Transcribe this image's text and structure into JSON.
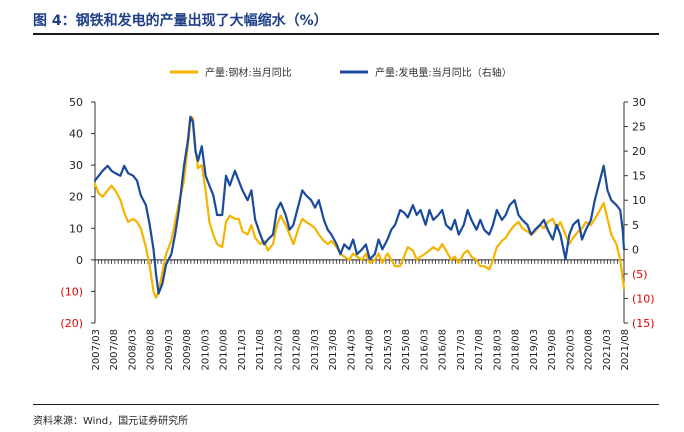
{
  "figure": {
    "title": "图 4：钢铁和发电的产量出现了大幅缩水（%）",
    "source": "资料来源：Wind，国元证券研究所"
  },
  "chart_data": {
    "type": "line",
    "title": "图 4：钢铁和发电的产量出现了大幅缩水（%）",
    "x_tick_labels": [
      "2007/03",
      "2007/08",
      "2008/03",
      "2008/08",
      "2009/03",
      "2009/08",
      "2010/03",
      "2010/08",
      "2011/03",
      "2011/08",
      "2012/03",
      "2012/08",
      "2013/03",
      "2013/08",
      "2014/03",
      "2014/08",
      "2015/03",
      "2015/08",
      "2016/03",
      "2016/08",
      "2017/03",
      "2017/08",
      "2018/03",
      "2018/08",
      "2019/03",
      "2019/08",
      "2020/03",
      "2020/08",
      "2021/03",
      "2021/08"
    ],
    "y_left": {
      "ticks": [
        50,
        40,
        30,
        20,
        10,
        0,
        -10,
        -20
      ],
      "tick_labels": [
        "50",
        "40",
        "30",
        "20",
        "10",
        "0",
        "(10)",
        "(20)"
      ],
      "ylim": [
        -20,
        50
      ]
    },
    "y_right": {
      "ticks": [
        30,
        25,
        20,
        15,
        10,
        5,
        0,
        -5,
        -10,
        -15
      ],
      "tick_labels": [
        "30",
        "25",
        "20",
        "15",
        "10",
        "5",
        "0",
        "(5)",
        "(10)",
        "(15)"
      ],
      "ylim": [
        -15,
        30
      ]
    },
    "legend": [
      "产量:钢材:当月同比",
      "产量:发电量:当月同比（右轴）"
    ],
    "colors": {
      "steel": "#f5b400",
      "power": "#1a4a9c",
      "negative_tick": "#e60000"
    },
    "series": [
      {
        "name": "产量:钢材:当月同比",
        "axis": "left",
        "points": [
          [
            0,
            24
          ],
          [
            0.3,
            21
          ],
          [
            0.6,
            20
          ],
          [
            1,
            22
          ],
          [
            1.3,
            23.5
          ],
          [
            1.6,
            22
          ],
          [
            2,
            19
          ],
          [
            2.3,
            15
          ],
          [
            2.6,
            12
          ],
          [
            3,
            13
          ],
          [
            3.3,
            12
          ],
          [
            3.6,
            10
          ],
          [
            4,
            4
          ],
          [
            4.3,
            -2
          ],
          [
            4.6,
            -10
          ],
          [
            4.8,
            -12
          ],
          [
            5,
            -10
          ],
          [
            5.3,
            -4
          ],
          [
            5.6,
            2
          ],
          [
            6,
            6
          ],
          [
            6.3,
            12
          ],
          [
            6.6,
            18
          ],
          [
            7,
            25
          ],
          [
            7.3,
            36
          ],
          [
            7.5,
            44
          ],
          [
            7.7,
            45
          ],
          [
            7.9,
            35
          ],
          [
            8.1,
            29
          ],
          [
            8.4,
            30
          ],
          [
            8.7,
            22
          ],
          [
            9,
            12
          ],
          [
            9.3,
            8
          ],
          [
            9.6,
            5
          ],
          [
            10,
            4
          ],
          [
            10.3,
            12
          ],
          [
            10.6,
            14
          ],
          [
            11,
            13
          ],
          [
            11.3,
            13
          ],
          [
            11.6,
            9
          ],
          [
            12,
            8
          ],
          [
            12.3,
            11
          ],
          [
            12.6,
            7
          ],
          [
            13,
            5
          ],
          [
            13.3,
            6
          ],
          [
            13.6,
            3
          ],
          [
            14,
            5
          ],
          [
            14.3,
            11
          ],
          [
            14.6,
            14
          ],
          [
            15,
            11
          ],
          [
            15.3,
            8
          ],
          [
            15.6,
            5
          ],
          [
            16,
            10
          ],
          [
            16.3,
            13
          ],
          [
            16.6,
            12
          ],
          [
            17,
            11
          ],
          [
            17.3,
            10
          ],
          [
            17.6,
            8
          ],
          [
            18,
            6
          ],
          [
            18.3,
            5
          ],
          [
            18.6,
            6
          ],
          [
            19,
            4
          ],
          [
            19.3,
            2
          ],
          [
            19.6,
            1
          ],
          [
            20,
            0
          ],
          [
            20.3,
            2
          ],
          [
            20.6,
            1
          ],
          [
            21,
            0
          ],
          [
            21.3,
            2
          ],
          [
            21.6,
            -1
          ],
          [
            22,
            0
          ],
          [
            22.3,
            2
          ],
          [
            22.6,
            -1
          ],
          [
            23,
            2
          ],
          [
            23.3,
            0
          ],
          [
            23.6,
            -2
          ],
          [
            24,
            -2
          ],
          [
            24.3,
            1
          ],
          [
            24.6,
            4
          ],
          [
            25,
            3
          ],
          [
            25.3,
            0
          ],
          [
            25.6,
            1
          ],
          [
            26,
            2
          ],
          [
            26.3,
            3
          ],
          [
            26.6,
            4
          ],
          [
            27,
            3
          ],
          [
            27.3,
            5
          ],
          [
            27.6,
            3
          ],
          [
            28,
            0
          ],
          [
            28.3,
            1
          ],
          [
            28.6,
            -1
          ],
          [
            29,
            2
          ],
          [
            29.3,
            3
          ],
          [
            29.6,
            1
          ],
          [
            30,
            0
          ],
          [
            30.3,
            -2
          ],
          [
            30.6,
            -2
          ],
          [
            31,
            -3
          ],
          [
            31.3,
            0
          ],
          [
            31.6,
            4
          ],
          [
            32,
            6
          ],
          [
            32.3,
            7
          ],
          [
            32.6,
            9
          ],
          [
            33,
            11
          ],
          [
            33.3,
            12
          ],
          [
            33.6,
            10
          ],
          [
            34,
            9
          ],
          [
            34.3,
            8
          ],
          [
            34.6,
            9
          ],
          [
            35,
            11
          ],
          [
            35.3,
            10
          ],
          [
            35.6,
            12
          ],
          [
            36,
            13
          ],
          [
            36.3,
            10
          ],
          [
            36.6,
            12
          ],
          [
            37,
            8
          ],
          [
            37.3,
            5
          ],
          [
            37.6,
            7
          ],
          [
            38,
            9
          ],
          [
            38.3,
            10
          ],
          [
            38.6,
            12
          ],
          [
            39,
            11
          ],
          [
            39.3,
            13
          ],
          [
            39.6,
            15
          ],
          [
            40,
            18
          ],
          [
            40.3,
            13
          ],
          [
            40.6,
            8
          ],
          [
            41,
            5
          ],
          [
            41.3,
            0
          ],
          [
            41.5,
            -6
          ],
          [
            41.6,
            -9
          ]
        ]
      },
      {
        "name": "产量:发电量:当月同比（右轴）",
        "axis": "right",
        "points": [
          [
            0,
            14
          ],
          [
            0.3,
            15
          ],
          [
            0.6,
            16
          ],
          [
            1,
            17
          ],
          [
            1.3,
            16
          ],
          [
            1.6,
            15.5
          ],
          [
            2,
            15
          ],
          [
            2.3,
            17
          ],
          [
            2.6,
            15.5
          ],
          [
            3,
            15
          ],
          [
            3.3,
            14
          ],
          [
            3.6,
            11
          ],
          [
            4,
            9
          ],
          [
            4.3,
            5
          ],
          [
            4.6,
            0
          ],
          [
            4.8,
            -5
          ],
          [
            5,
            -9
          ],
          [
            5.3,
            -7
          ],
          [
            5.6,
            -3
          ],
          [
            6,
            -1
          ],
          [
            6.3,
            3
          ],
          [
            6.6,
            8
          ],
          [
            7,
            17
          ],
          [
            7.3,
            22
          ],
          [
            7.5,
            27
          ],
          [
            7.7,
            26
          ],
          [
            7.9,
            20
          ],
          [
            8.1,
            18
          ],
          [
            8.4,
            21
          ],
          [
            8.7,
            15
          ],
          [
            9,
            13
          ],
          [
            9.3,
            11
          ],
          [
            9.6,
            7
          ],
          [
            10,
            7
          ],
          [
            10.3,
            15
          ],
          [
            10.6,
            13
          ],
          [
            11,
            16
          ],
          [
            11.3,
            14
          ],
          [
            11.6,
            12
          ],
          [
            12,
            10
          ],
          [
            12.3,
            12
          ],
          [
            12.6,
            6
          ],
          [
            13,
            3
          ],
          [
            13.3,
            1
          ],
          [
            13.6,
            2
          ],
          [
            14,
            3
          ],
          [
            14.3,
            8
          ],
          [
            14.6,
            9.5
          ],
          [
            15,
            7
          ],
          [
            15.3,
            4
          ],
          [
            15.6,
            5
          ],
          [
            16,
            9
          ],
          [
            16.3,
            12
          ],
          [
            16.6,
            11
          ],
          [
            17,
            10
          ],
          [
            17.3,
            8.5
          ],
          [
            17.6,
            10
          ],
          [
            18,
            6
          ],
          [
            18.3,
            4
          ],
          [
            18.6,
            3
          ],
          [
            19,
            1
          ],
          [
            19.3,
            -1
          ],
          [
            19.6,
            1
          ],
          [
            20,
            0
          ],
          [
            20.3,
            2
          ],
          [
            20.6,
            -1
          ],
          [
            21,
            0
          ],
          [
            21.3,
            1
          ],
          [
            21.6,
            -2
          ],
          [
            22,
            -1
          ],
          [
            22.3,
            2
          ],
          [
            22.6,
            0
          ],
          [
            23,
            2
          ],
          [
            23.3,
            4
          ],
          [
            23.6,
            5
          ],
          [
            24,
            8
          ],
          [
            24.3,
            7.5
          ],
          [
            24.6,
            6.5
          ],
          [
            25,
            9
          ],
          [
            25.3,
            7
          ],
          [
            25.6,
            8
          ],
          [
            26,
            5
          ],
          [
            26.3,
            8
          ],
          [
            26.6,
            6
          ],
          [
            27,
            7
          ],
          [
            27.3,
            8
          ],
          [
            27.6,
            5
          ],
          [
            28,
            4
          ],
          [
            28.3,
            6
          ],
          [
            28.6,
            3
          ],
          [
            29,
            5
          ],
          [
            29.3,
            8
          ],
          [
            29.6,
            6
          ],
          [
            30,
            4
          ],
          [
            30.3,
            6
          ],
          [
            30.6,
            4
          ],
          [
            31,
            3
          ],
          [
            31.3,
            5
          ],
          [
            31.6,
            8
          ],
          [
            32,
            6
          ],
          [
            32.3,
            7
          ],
          [
            32.6,
            9
          ],
          [
            33,
            10
          ],
          [
            33.3,
            7
          ],
          [
            33.6,
            6
          ],
          [
            34,
            5
          ],
          [
            34.3,
            3
          ],
          [
            34.6,
            4
          ],
          [
            35,
            5
          ],
          [
            35.3,
            6
          ],
          [
            35.6,
            4
          ],
          [
            36,
            2
          ],
          [
            36.3,
            5
          ],
          [
            36.6,
            3
          ],
          [
            37,
            -2
          ],
          [
            37.3,
            3
          ],
          [
            37.6,
            5
          ],
          [
            38,
            6
          ],
          [
            38.3,
            2
          ],
          [
            38.6,
            4
          ],
          [
            39,
            6
          ],
          [
            39.3,
            10
          ],
          [
            39.6,
            13
          ],
          [
            40,
            17
          ],
          [
            40.3,
            12
          ],
          [
            40.6,
            10
          ],
          [
            41,
            9
          ],
          [
            41.3,
            8
          ],
          [
            41.5,
            4
          ],
          [
            41.6,
            0
          ]
        ]
      }
    ]
  }
}
